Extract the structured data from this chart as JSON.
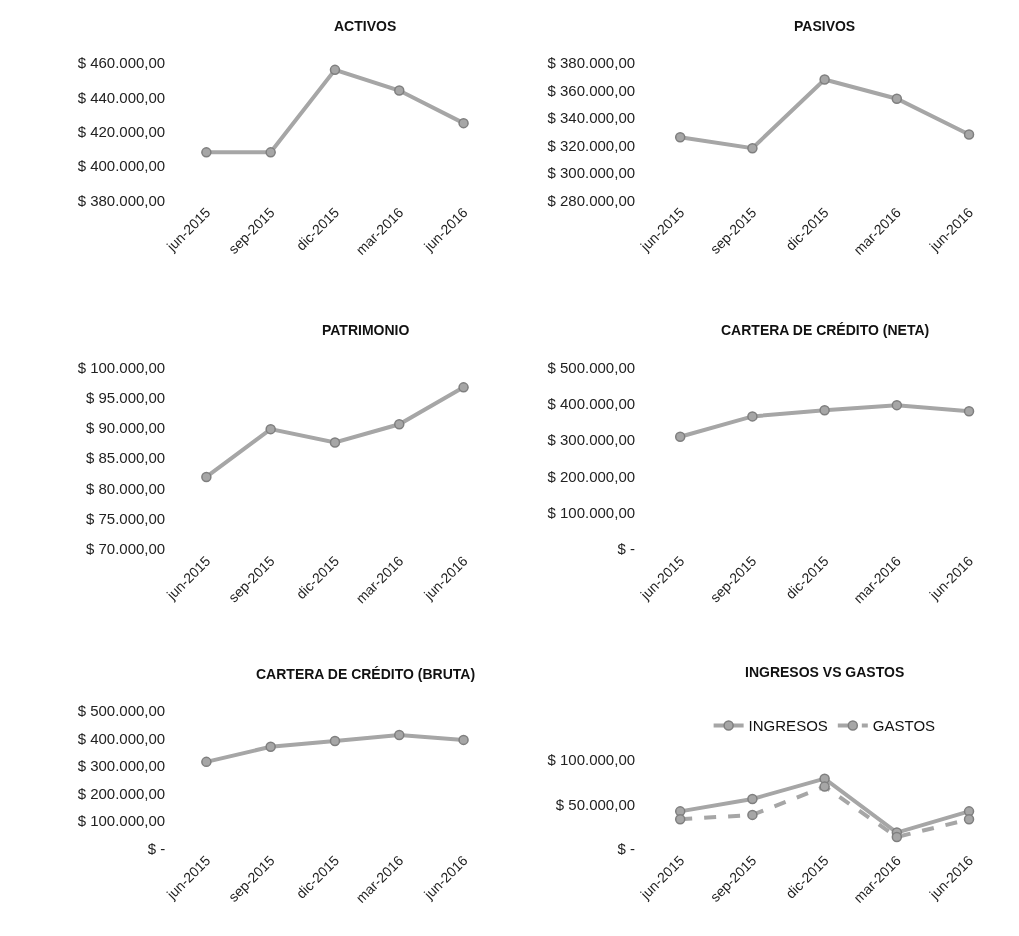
{
  "chart_data": [
    {
      "type": "line",
      "title": "ACTIVOS",
      "categories": [
        "jun-2015",
        "sep-2015",
        "dic-2015",
        "mar-2016",
        "jun-2016"
      ],
      "marker": "circle",
      "series": [
        {
          "color": "#a6a6a6",
          "values": [
            408000,
            408000,
            456000,
            444000,
            425000
          ]
        }
      ],
      "ylim": [
        380000,
        460000
      ],
      "yticks": [
        {
          "value": 380000,
          "label": "$ 380.000,00"
        },
        {
          "value": 400000,
          "label": "$ 400.000,00"
        },
        {
          "value": 420000,
          "label": "$ 420.000,00"
        },
        {
          "value": 440000,
          "label": "$ 440.000,00"
        },
        {
          "value": 460000,
          "label": "$ 460.000,00"
        }
      ]
    },
    {
      "type": "line",
      "title": "PASIVOS",
      "categories": [
        "jun-2015",
        "sep-2015",
        "dic-2015",
        "mar-2016",
        "jun-2016"
      ],
      "marker": "circle",
      "series": [
        {
          "color": "#a6a6a6",
          "values": [
            326000,
            318000,
            368000,
            354000,
            328000
          ]
        }
      ],
      "ylim": [
        280000,
        380000
      ],
      "yticks": [
        {
          "value": 280000,
          "label": "$ 280.000,00"
        },
        {
          "value": 300000,
          "label": "$ 300.000,00"
        },
        {
          "value": 320000,
          "label": "$ 320.000,00"
        },
        {
          "value": 340000,
          "label": "$ 340.000,00"
        },
        {
          "value": 360000,
          "label": "$ 360.000,00"
        },
        {
          "value": 380000,
          "label": "$ 380.000,00"
        }
      ]
    },
    {
      "type": "line",
      "title": "PATRIMONIO",
      "categories": [
        "jun-2015",
        "sep-2015",
        "dic-2015",
        "mar-2016",
        "jun-2016"
      ],
      "marker": "circle",
      "series": [
        {
          "color": "#a6a6a6",
          "values": [
            81900,
            89800,
            87600,
            90600,
            96700
          ]
        }
      ],
      "ylim": [
        70000,
        100000
      ],
      "yticks": [
        {
          "value": 70000,
          "label": "$ 70.000,00"
        },
        {
          "value": 75000,
          "label": "$ 75.000,00"
        },
        {
          "value": 80000,
          "label": "$ 80.000,00"
        },
        {
          "value": 85000,
          "label": "$ 85.000,00"
        },
        {
          "value": 90000,
          "label": "$ 90.000,00"
        },
        {
          "value": 95000,
          "label": "$ 95.000,00"
        },
        {
          "value": 100000,
          "label": "$ 100.000,00"
        }
      ]
    },
    {
      "type": "line",
      "title": "CARTERA DE CRÉDITO (NETA)",
      "categories": [
        "jun-2015",
        "sep-2015",
        "dic-2015",
        "mar-2016",
        "jun-2016"
      ],
      "marker": "circle",
      "series": [
        {
          "color": "#a6a6a6",
          "values": [
            309000,
            365000,
            382000,
            396000,
            379000
          ]
        }
      ],
      "ylim": [
        0,
        500000
      ],
      "yticks": [
        {
          "value": 0,
          "label": "$ -"
        },
        {
          "value": 100000,
          "label": "$ 100.000,00"
        },
        {
          "value": 200000,
          "label": "$ 200.000,00"
        },
        {
          "value": 300000,
          "label": "$ 300.000,00"
        },
        {
          "value": 400000,
          "label": "$ 400.000,00"
        },
        {
          "value": 500000,
          "label": "$ 500.000,00"
        }
      ]
    },
    {
      "type": "line",
      "title": "CARTERA DE CRÉDITO (BRUTA)",
      "categories": [
        "jun-2015",
        "sep-2015",
        "dic-2015",
        "mar-2016",
        "jun-2016"
      ],
      "marker": "circle",
      "series": [
        {
          "color": "#a6a6a6",
          "values": [
            315000,
            370000,
            391000,
            413000,
            395000
          ]
        }
      ],
      "ylim": [
        0,
        500000
      ],
      "yticks": [
        {
          "value": 0,
          "label": "$ -"
        },
        {
          "value": 100000,
          "label": "$ 100.000,00"
        },
        {
          "value": 200000,
          "label": "$ 200.000,00"
        },
        {
          "value": 300000,
          "label": "$ 300.000,00"
        },
        {
          "value": 400000,
          "label": "$ 400.000,00"
        },
        {
          "value": 500000,
          "label": "$ 500.000,00"
        }
      ]
    },
    {
      "type": "line",
      "title": "INGRESOS VS GASTOS",
      "categories": [
        "jun-2015",
        "sep-2015",
        "dic-2015",
        "mar-2016",
        "jun-2016"
      ],
      "marker": "circle",
      "legend": "top",
      "series": [
        {
          "name": "INGRESOS",
          "color": "#a6a6a6",
          "values": [
            42000,
            56000,
            79000,
            18000,
            42000
          ]
        },
        {
          "name": "GASTOS",
          "color": "#a6a6a6",
          "line_style": "dashed",
          "values": [
            33000,
            38000,
            70000,
            13000,
            33000
          ]
        }
      ],
      "ylim": [
        0,
        100000
      ],
      "yticks": [
        {
          "value": 0,
          "label": "$ -"
        },
        {
          "value": 50000,
          "label": "$ 50.000,00"
        },
        {
          "value": 100000,
          "label": "$ 100.000,00"
        }
      ]
    }
  ]
}
